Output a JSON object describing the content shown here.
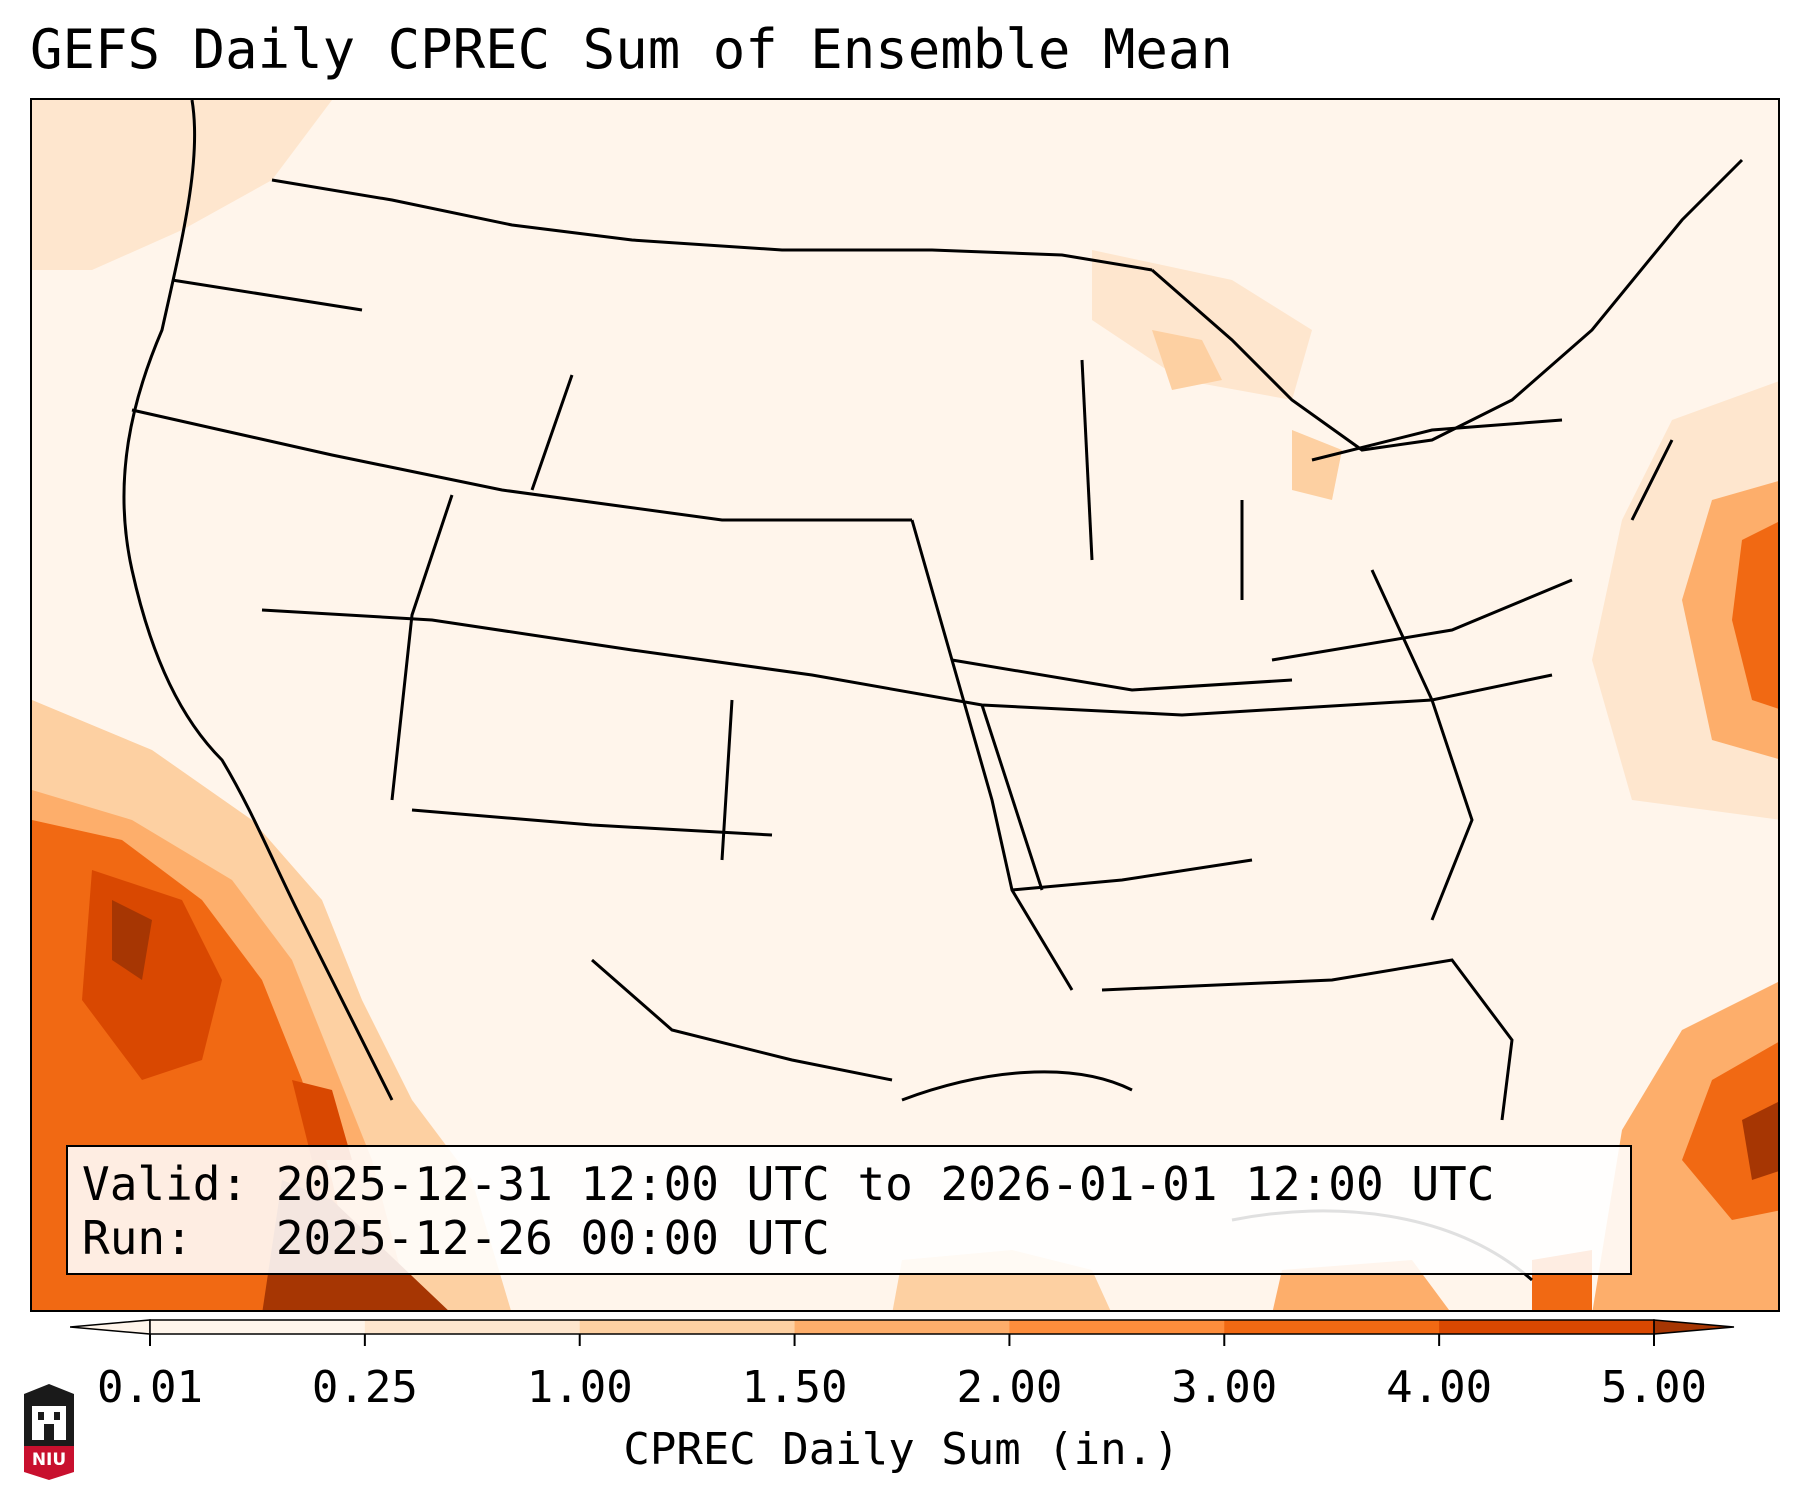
{
  "title": "GEFS Daily CPREC Sum of Ensemble Mean",
  "info": {
    "valid": "Valid: 2025-12-31 12:00 UTC to 2026-01-01 12:00 UTC",
    "run": "Run:   2025-12-26 00:00 UTC"
  },
  "colorbar": {
    "label": "CPREC Daily Sum (in.)",
    "ticks": [
      "0.01",
      "0.25",
      "1.00",
      "1.50",
      "2.00",
      "3.00",
      "4.00",
      "5.00"
    ],
    "colors": [
      "#fff5eb",
      "#fee6ce",
      "#fdd0a2",
      "#fdae6b",
      "#fd8d3c",
      "#f16913",
      "#d94801",
      "#a63603"
    ],
    "extend": "both"
  },
  "logo": {
    "text": "NIU",
    "color": "#c8102e"
  },
  "map": {
    "region": "Continental United States",
    "style": {
      "state_line_color": "#000000",
      "land_color": "#ffffff"
    }
  }
}
